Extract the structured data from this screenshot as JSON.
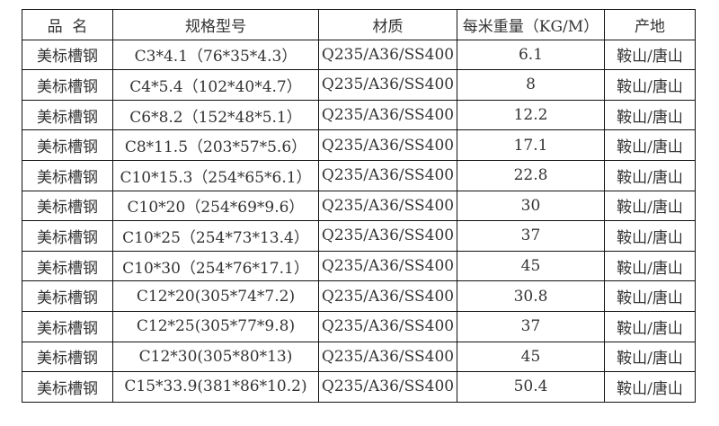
{
  "table": {
    "headers": [
      "品  名",
      "规格型号",
      "材质",
      "每米重量（KG/M）",
      "产地"
    ],
    "rows": [
      [
        "美标槽钢",
        "C3*4.1（76*35*4.3）",
        "Q235/A36/SS400",
        "6.1",
        "鞍山/唐山"
      ],
      [
        "美标槽钢",
        "C4*5.4（102*40*4.7）",
        "Q235/A36/SS400",
        "8",
        "鞍山/唐山"
      ],
      [
        "美标槽钢",
        "C6*8.2（152*48*5.1）",
        "Q235/A36/SS400",
        "12.2",
        "鞍山/唐山"
      ],
      [
        "美标槽钢",
        "C8*11.5（203*57*5.6）",
        "Q235/A36/SS400",
        "17.1",
        "鞍山/唐山"
      ],
      [
        "美标槽钢",
        "C10*15.3（254*65*6.1）",
        "Q235/A36/SS400",
        "22.8",
        "鞍山/唐山"
      ],
      [
        "美标槽钢",
        "C10*20（254*69*9.6）",
        "Q235/A36/SS400",
        "30",
        "鞍山/唐山"
      ],
      [
        "美标槽钢",
        "C10*25（254*73*13.4）",
        "Q235/A36/SS400",
        "37",
        "鞍山/唐山"
      ],
      [
        "美标槽钢",
        "C10*30（254*76*17.1）",
        "Q235/A36/SS400",
        "45",
        "鞍山/唐山"
      ],
      [
        "美标槽钢",
        "C12*20(305*74*7.2)",
        "Q235/A36/SS400",
        "30.8",
        "鞍山/唐山"
      ],
      [
        "美标槽钢",
        "C12*25(305*77*9.8)",
        "Q235/A36/SS400",
        "37",
        "鞍山/唐山"
      ],
      [
        "美标槽钢",
        "C12*30(305*80*13)",
        "Q235/A36/SS400",
        "45",
        "鞍山/唐山"
      ],
      [
        "美标槽钢",
        "C15*33.9(381*86*10.2)",
        "Q235/A36/SS400",
        "50.4",
        "鞍山/唐山"
      ]
    ]
  }
}
